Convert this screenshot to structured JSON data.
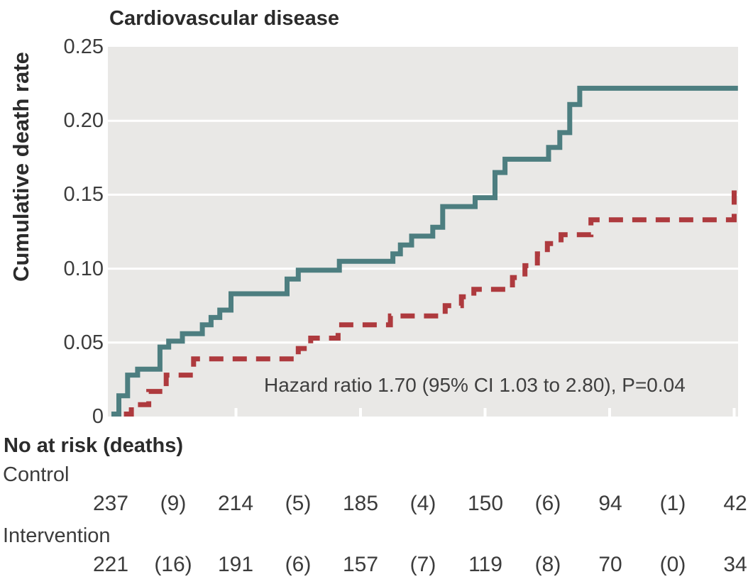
{
  "chart": {
    "title": "Cardiovascular disease",
    "y_axis_label": "Cumulative death rate",
    "y_ticks": [
      "0.25",
      "0.20",
      "0.15",
      "0.10",
      "0.05",
      "0"
    ],
    "annotation": "Hazard ratio 1.70 (95% CI 1.03 to 2.80), P=0.04"
  },
  "colors": {
    "intervention_line": "#4d7e80",
    "control_line": "#ae3a3e",
    "plot_background": "#e9e8e6",
    "gridline": "#ffffff",
    "text": "#2e2e2e"
  },
  "chart_data": {
    "type": "line",
    "subtype": "kaplan-meier-step",
    "title": "Cardiovascular disease",
    "xlabel": "",
    "ylabel": "Cumulative death rate",
    "ylim": [
      0,
      0.25
    ],
    "yticks": [
      0,
      0.05,
      0.1,
      0.15,
      0.2,
      0.25
    ],
    "xlim": [
      0,
      5.05
    ],
    "xticks": [
      0,
      1,
      2,
      3,
      4,
      5
    ],
    "x_tick_labels_shown": false,
    "grid": "horizontal white lines on gray panel",
    "legend_position": "none",
    "annotation": "Hazard ratio 1.70 (95% CI 1.03 to 2.80), P=0.04",
    "series": [
      {
        "name": "Intervention",
        "style": "solid",
        "color": "#4d7e80",
        "end_t": 5.03,
        "points": [
          [
            0,
            0
          ],
          [
            0.06,
            0.014
          ],
          [
            0.13,
            0.028
          ],
          [
            0.21,
            0.032
          ],
          [
            0.39,
            0.047
          ],
          [
            0.46,
            0.051
          ],
          [
            0.57,
            0.056
          ],
          [
            0.73,
            0.062
          ],
          [
            0.8,
            0.067
          ],
          [
            0.87,
            0.072
          ],
          [
            0.96,
            0.083
          ],
          [
            1.41,
            0.093
          ],
          [
            1.5,
            0.099
          ],
          [
            1.83,
            0.105
          ],
          [
            2.26,
            0.11
          ],
          [
            2.32,
            0.116
          ],
          [
            2.41,
            0.122
          ],
          [
            2.58,
            0.128
          ],
          [
            2.66,
            0.142
          ],
          [
            2.92,
            0.148
          ],
          [
            3.08,
            0.165
          ],
          [
            3.16,
            0.174
          ],
          [
            3.51,
            0.182
          ],
          [
            3.6,
            0.192
          ],
          [
            3.68,
            0.211
          ],
          [
            3.76,
            0.222
          ]
        ]
      },
      {
        "name": "Control",
        "style": "dashed",
        "color": "#ae3a3e",
        "end_t": 5.02,
        "points": [
          [
            0.1,
            0
          ],
          [
            0.16,
            0.008
          ],
          [
            0.3,
            0.017
          ],
          [
            0.44,
            0.028
          ],
          [
            0.66,
            0.039
          ],
          [
            1.5,
            0.046
          ],
          [
            1.6,
            0.053
          ],
          [
            1.82,
            0.062
          ],
          [
            2.24,
            0.068
          ],
          [
            2.68,
            0.075
          ],
          [
            2.81,
            0.081
          ],
          [
            2.91,
            0.086
          ],
          [
            3.22,
            0.094
          ],
          [
            3.32,
            0.102
          ],
          [
            3.42,
            0.11
          ],
          [
            3.5,
            0.117
          ],
          [
            3.61,
            0.123
          ],
          [
            3.85,
            0.133
          ],
          [
            5.0,
            0.153
          ]
        ]
      }
    ]
  },
  "risk_table": {
    "header": "No at risk (deaths)",
    "rows": [
      {
        "label": "Control",
        "values": [
          "237",
          "(9)",
          "214",
          "(5)",
          "185",
          "(4)",
          "150",
          "(6)",
          "94",
          "(1)",
          "42"
        ]
      },
      {
        "label": "Intervention",
        "values": [
          "221",
          "(16)",
          "191",
          "(6)",
          "157",
          "(7)",
          "119",
          "(8)",
          "70",
          "(0)",
          "34"
        ]
      }
    ]
  }
}
